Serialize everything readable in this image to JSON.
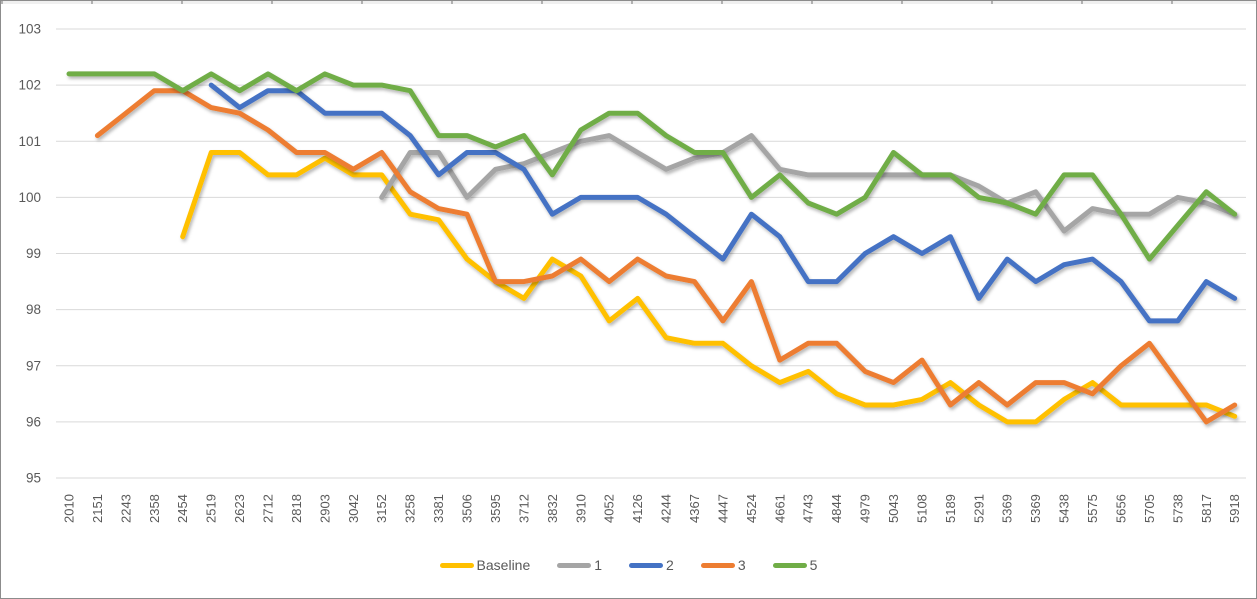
{
  "window": {
    "background": "#ffffff",
    "border_color": "#8c8c8c"
  },
  "chart_data": {
    "type": "line",
    "title": "",
    "xlabel": "",
    "ylabel": "",
    "ylim": [
      95,
      103
    ],
    "yticks": [
      95,
      96,
      97,
      98,
      99,
      100,
      101,
      102,
      103
    ],
    "grid": true,
    "gridline_color": "#d9d9d9",
    "axis_label_color": "#595959",
    "legend_position": "bottom",
    "x_labels_rotated": true,
    "categories": [
      "2010",
      "2151",
      "2243",
      "2358",
      "2454",
      "2519",
      "2623",
      "2712",
      "2818",
      "2903",
      "3042",
      "3152",
      "3258",
      "3381",
      "3506",
      "3595",
      "3712",
      "3832",
      "3910",
      "4052",
      "4126",
      "4244",
      "4367",
      "4447",
      "4524",
      "4661",
      "4743",
      "4844",
      "4979",
      "5043",
      "5108",
      "5189",
      "5291",
      "5369",
      "5369",
      "5438",
      "5575",
      "5656",
      "5705",
      "5738",
      "5817",
      "5918"
    ],
    "series": [
      {
        "name": "Baseline",
        "color": "#FFC000",
        "values": [
          null,
          null,
          null,
          null,
          99.3,
          100.8,
          100.8,
          100.4,
          100.4,
          100.7,
          100.4,
          100.4,
          99.7,
          99.6,
          98.9,
          98.5,
          98.2,
          98.9,
          98.6,
          97.8,
          98.2,
          97.5,
          97.4,
          97.4,
          97.0,
          96.7,
          96.9,
          96.5,
          96.3,
          96.3,
          96.4,
          96.7,
          96.3,
          96.0,
          96.0,
          96.4,
          96.7,
          96.3,
          96.3,
          96.3,
          96.3,
          96.1
        ]
      },
      {
        "name": "1",
        "color": "#A5A5A5",
        "values": [
          null,
          null,
          null,
          null,
          null,
          null,
          null,
          null,
          null,
          null,
          null,
          100.0,
          100.8,
          100.8,
          100.0,
          100.5,
          100.6,
          100.8,
          101.0,
          101.1,
          100.8,
          100.5,
          100.7,
          100.8,
          101.1,
          100.5,
          100.4,
          100.4,
          100.4,
          100.4,
          100.4,
          100.4,
          100.2,
          99.9,
          100.1,
          99.4,
          99.8,
          99.7,
          99.7,
          100.0,
          99.9,
          99.7
        ]
      },
      {
        "name": "2",
        "color": "#4472C4",
        "values": [
          null,
          null,
          null,
          null,
          null,
          102.0,
          101.6,
          101.9,
          101.9,
          101.5,
          101.5,
          101.5,
          101.1,
          100.4,
          100.8,
          100.8,
          100.5,
          99.7,
          100.0,
          100.0,
          100.0,
          99.7,
          99.3,
          98.9,
          99.7,
          99.3,
          98.5,
          98.5,
          99.0,
          99.3,
          99.0,
          99.3,
          98.2,
          98.9,
          98.5,
          98.8,
          98.9,
          98.5,
          97.8,
          97.8,
          98.5,
          98.2
        ]
      },
      {
        "name": "3",
        "color": "#ED7D31",
        "values": [
          null,
          101.1,
          101.5,
          101.9,
          101.9,
          101.6,
          101.5,
          101.2,
          100.8,
          100.8,
          100.5,
          100.8,
          100.1,
          99.8,
          99.7,
          98.5,
          98.5,
          98.6,
          98.9,
          98.5,
          98.9,
          98.6,
          98.5,
          97.8,
          98.5,
          97.1,
          97.4,
          97.4,
          96.9,
          96.7,
          97.1,
          96.3,
          96.7,
          96.3,
          96.7,
          96.7,
          96.5,
          97.0,
          97.4,
          96.7,
          96.0,
          96.3
        ]
      },
      {
        "name": "5",
        "color": "#70AD47",
        "values": [
          102.2,
          102.2,
          102.2,
          102.2,
          101.9,
          102.2,
          101.9,
          102.2,
          101.9,
          102.2,
          102.0,
          102.0,
          101.9,
          101.1,
          101.1,
          100.9,
          101.1,
          100.4,
          101.2,
          101.5,
          101.5,
          101.1,
          100.8,
          100.8,
          100.0,
          100.4,
          99.9,
          99.7,
          100.0,
          100.8,
          100.4,
          100.4,
          100.0,
          99.9,
          99.7,
          100.4,
          100.4,
          99.7,
          98.9,
          99.5,
          100.1,
          99.7
        ]
      }
    ]
  }
}
